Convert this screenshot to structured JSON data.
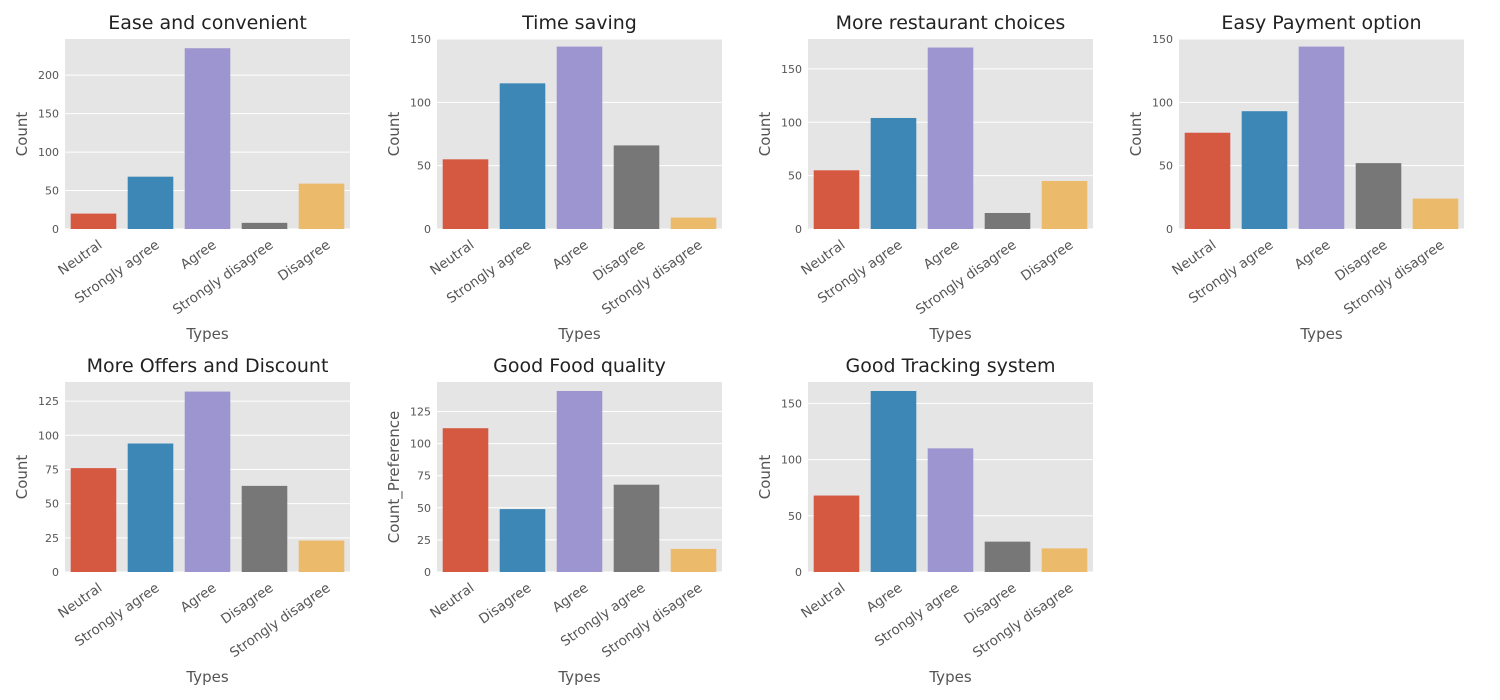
{
  "colors": {
    "panel_background": "#e5e5e5",
    "grid": "#ffffff",
    "palette": [
      "#d55841",
      "#3d87b6",
      "#9d95cf",
      "#777777",
      "#ebbb6b"
    ]
  },
  "chart_data": [
    {
      "type": "bar",
      "title": "Ease and convenient",
      "xlabel": "Types",
      "ylabel": "Count",
      "categories": [
        "Neutral",
        "Strongly agree",
        "Agree",
        "Strongly disagree",
        "Disagree"
      ],
      "values": [
        20,
        68,
        235,
        8,
        59
      ],
      "yticks": [
        0,
        50,
        100,
        150,
        200
      ],
      "ylim": [
        0,
        247
      ],
      "grid": true
    },
    {
      "type": "bar",
      "title": "Time saving",
      "xlabel": "Types",
      "ylabel": "Count",
      "categories": [
        "Neutral",
        "Strongly agree",
        "Agree",
        "Disagree",
        "Strongly disagree"
      ],
      "values": [
        55,
        115,
        144,
        66,
        9
      ],
      "yticks": [
        0,
        50,
        100,
        150
      ],
      "ylim": [
        0,
        150
      ],
      "grid": true
    },
    {
      "type": "bar",
      "title": "More restaurant choices",
      "xlabel": "Types",
      "ylabel": "Count",
      "categories": [
        "Neutral",
        "Strongly agree",
        "Agree",
        "Strongly disagree",
        "Disagree"
      ],
      "values": [
        55,
        104,
        170,
        15,
        45
      ],
      "yticks": [
        0,
        50,
        100,
        150
      ],
      "ylim": [
        0,
        178
      ],
      "grid": true
    },
    {
      "type": "bar",
      "title": "Easy Payment option",
      "xlabel": "Types",
      "ylabel": "Count",
      "categories": [
        "Neutral",
        "Strongly agree",
        "Agree",
        "Disagree",
        "Strongly disagree"
      ],
      "values": [
        76,
        93,
        144,
        52,
        24
      ],
      "yticks": [
        0,
        50,
        100,
        150
      ],
      "ylim": [
        0,
        150
      ],
      "grid": true
    },
    {
      "type": "bar",
      "title": "More Offers and Discount",
      "xlabel": "Types",
      "ylabel": "Count",
      "categories": [
        "Neutral",
        "Strongly agree",
        "Agree",
        "Disagree",
        "Strongly disagree"
      ],
      "values": [
        76,
        94,
        132,
        63,
        23
      ],
      "yticks": [
        0,
        25,
        50,
        75,
        100,
        125
      ],
      "ylim": [
        0,
        139
      ],
      "grid": true
    },
    {
      "type": "bar",
      "title": "Good Food quality",
      "xlabel": "Types",
      "ylabel": "Count_Preference",
      "categories": [
        "Neutral",
        "Disagree",
        "Agree",
        "Strongly agree",
        "Strongly disagree"
      ],
      "values": [
        112,
        49,
        141,
        68,
        18
      ],
      "yticks": [
        0,
        25,
        50,
        75,
        100,
        125
      ],
      "ylim": [
        0,
        148
      ],
      "grid": true
    },
    {
      "type": "bar",
      "title": "Good Tracking system",
      "xlabel": "Types",
      "ylabel": "Count",
      "categories": [
        "Neutral",
        "Agree",
        "Strongly agree",
        "Disagree",
        "Strongly disagree"
      ],
      "values": [
        68,
        161,
        110,
        27,
        21
      ],
      "yticks": [
        0,
        50,
        100,
        150
      ],
      "ylim": [
        0,
        169
      ],
      "grid": true
    }
  ]
}
